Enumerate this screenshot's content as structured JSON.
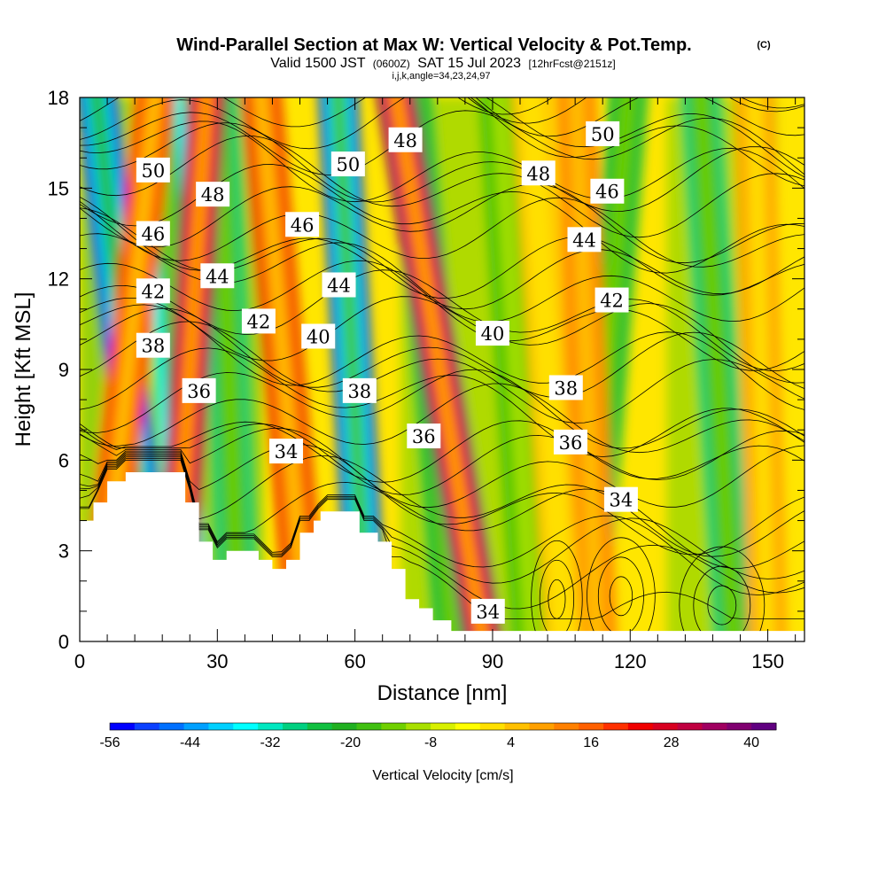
{
  "chart_data": {
    "type": "heatmap",
    "title": "Wind-Parallel Section at Max W: Vertical Velocity & Pot.Temp.",
    "title_mark": "(C)",
    "subtitle_prefix": "Valid 1500 JST",
    "subtitle_zulu": "(0600Z)",
    "subtitle_date": "SAT 15 Jul 2023",
    "subtitle_forecast": "[12hrFcst@2151z]",
    "subtitle_indices": "i,j,k,angle=34,23,24,97",
    "xlabel": "Distance [nm]",
    "ylabel": "Height [Kft MSL]",
    "xlim": [
      0,
      158
    ],
    "ylim": [
      0,
      18
    ],
    "xticks": [
      0,
      30,
      60,
      90,
      120,
      150
    ],
    "yticks": [
      0,
      3,
      6,
      9,
      12,
      15,
      18
    ],
    "xticks_minor_step": 6,
    "yticks_minor_step": 1,
    "colorbar": {
      "title": "Vertical Velocity [cm/s]",
      "tick_labels": [
        "-56",
        "-44",
        "-32",
        "-20",
        "-8",
        "4",
        "16",
        "28",
        "40"
      ],
      "levels": [
        -56,
        52
      ],
      "colors": [
        "#0000ff",
        "#0a40ff",
        "#0070ff",
        "#00a0ff",
        "#00d0ff",
        "#00ffff",
        "#00e8c0",
        "#00d080",
        "#10c040",
        "#20b020",
        "#40c010",
        "#70d000",
        "#a8e000",
        "#d8f000",
        "#ffff00",
        "#ffe000",
        "#ffc000",
        "#ffa000",
        "#ff8000",
        "#ff6000",
        "#ff3000",
        "#f00000",
        "#d80020",
        "#c00040",
        "#a00060",
        "#800070",
        "#600080"
      ]
    },
    "terrain_profile": [
      [
        0,
        4
      ],
      [
        3,
        4
      ],
      [
        3,
        4.6
      ],
      [
        6,
        4.6
      ],
      [
        6,
        5.3
      ],
      [
        10,
        5.3
      ],
      [
        10,
        5.6
      ],
      [
        23,
        5.6
      ],
      [
        23,
        4.6
      ],
      [
        26,
        4.6
      ],
      [
        26,
        3.3
      ],
      [
        29,
        3.3
      ],
      [
        29,
        2.7
      ],
      [
        32,
        2.7
      ],
      [
        32,
        3
      ],
      [
        39,
        3
      ],
      [
        39,
        2.7
      ],
      [
        42,
        2.7
      ],
      [
        42,
        2.4
      ],
      [
        45,
        2.4
      ],
      [
        45,
        2.7
      ],
      [
        48,
        2.7
      ],
      [
        48,
        3.6
      ],
      [
        51,
        3.6
      ],
      [
        51,
        4
      ],
      [
        52.5,
        4
      ],
      [
        52.5,
        4.3
      ],
      [
        61,
        4.3
      ],
      [
        61,
        3.6
      ],
      [
        65,
        3.6
      ],
      [
        65,
        3.3
      ],
      [
        68,
        3.3
      ],
      [
        68,
        2.4
      ],
      [
        71,
        2.4
      ],
      [
        71,
        1.4
      ],
      [
        74,
        1.4
      ],
      [
        74,
        1.1
      ],
      [
        77,
        1.1
      ],
      [
        77,
        0.7
      ],
      [
        81,
        0.7
      ],
      [
        81,
        0.35
      ],
      [
        158,
        0.35
      ]
    ],
    "updraft_bands": [
      {
        "x_surface": 4,
        "x_top": 17,
        "value": 26
      },
      {
        "x_surface": 20,
        "x_top": 28,
        "value": 44
      },
      {
        "x_surface": 50,
        "x_top": 39,
        "value": 32
      },
      {
        "x_surface": 89,
        "x_top": 68,
        "value": 48
      },
      {
        "x_surface": 113,
        "x_top": 108,
        "value": 18
      },
      {
        "x_surface": 106,
        "x_top": 98,
        "value": 10
      },
      {
        "x_surface": 150,
        "x_top": 147,
        "value": 14
      }
    ],
    "downdraft_bands": [
      {
        "x_surface": 17,
        "x_top": 3,
        "value": -56
      },
      {
        "x_surface": 24,
        "x_top": 18,
        "value": -36
      },
      {
        "x_surface": 35,
        "x_top": 30,
        "value": -26
      },
      {
        "x_surface": 63,
        "x_top": 56,
        "value": -52
      },
      {
        "x_surface": 82,
        "x_top": 72,
        "value": -22
      },
      {
        "x_surface": 99,
        "x_top": 91,
        "value": -14
      },
      {
        "x_surface": 110,
        "x_top": 120,
        "value": -22
      },
      {
        "x_surface": 143,
        "x_top": 135,
        "value": -26
      }
    ],
    "contour_labels": [
      {
        "text": "50",
        "x": 16,
        "y": 15.6
      },
      {
        "text": "48",
        "x": 29,
        "y": 14.8
      },
      {
        "text": "50",
        "x": 58.5,
        "y": 15.8
      },
      {
        "text": "48",
        "x": 71,
        "y": 16.6
      },
      {
        "text": "48",
        "x": 100,
        "y": 15.5
      },
      {
        "text": "50",
        "x": 114,
        "y": 16.8
      },
      {
        "text": "46",
        "x": 16,
        "y": 13.5
      },
      {
        "text": "46",
        "x": 48.5,
        "y": 13.8
      },
      {
        "text": "46",
        "x": 115,
        "y": 14.9
      },
      {
        "text": "44",
        "x": 30,
        "y": 12.1
      },
      {
        "text": "44",
        "x": 56.5,
        "y": 11.8
      },
      {
        "text": "44",
        "x": 110,
        "y": 13.3
      },
      {
        "text": "42",
        "x": 16,
        "y": 11.6
      },
      {
        "text": "42",
        "x": 39,
        "y": 10.6
      },
      {
        "text": "42",
        "x": 116,
        "y": 11.3
      },
      {
        "text": "40",
        "x": 52,
        "y": 10.1
      },
      {
        "text": "40",
        "x": 90,
        "y": 10.2
      },
      {
        "text": "38",
        "x": 16,
        "y": 9.8
      },
      {
        "text": "38",
        "x": 61,
        "y": 8.3
      },
      {
        "text": "38",
        "x": 106,
        "y": 8.4
      },
      {
        "text": "36",
        "x": 26,
        "y": 8.3
      },
      {
        "text": "36",
        "x": 75,
        "y": 6.8
      },
      {
        "text": "36",
        "x": 107,
        "y": 6.6
      },
      {
        "text": "34",
        "x": 45,
        "y": 6.3
      },
      {
        "text": "34",
        "x": 118,
        "y": 4.7
      },
      {
        "text": "34",
        "x": 89,
        "y": 1.0
      }
    ]
  }
}
